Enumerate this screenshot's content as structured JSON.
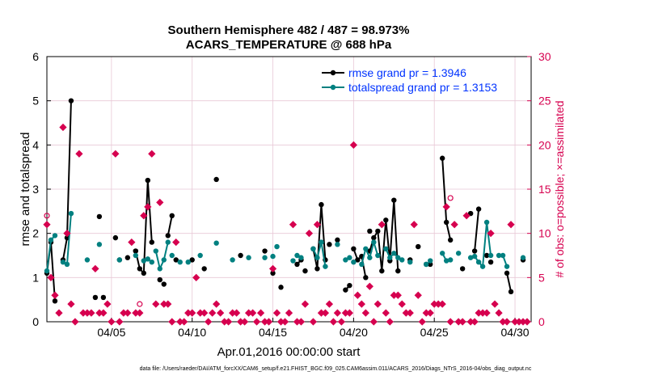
{
  "chart_data": {
    "type": "line",
    "title_line1": "Southern Hemisphere 482 / 487 = 98.973%",
    "title_line2": "ACARS_TEMPERATURE @ 688 hPa",
    "xlabel": "Apr.01,2016 00:00:00 start",
    "ylabel_left": "rmse and totalspread",
    "ylabel_right": "# of obs: o=possible; ×=assimilated",
    "footer": "data file: /Users/raeder/DAI/ATM_forcXX/CAM6_setup/f.e21.FHIST_BGC.f09_025.CAM6assim.011/ACARS_2016/Diags_NTrS_2016-04/obs_diag_output.nc",
    "xlim": [
      1,
      31
    ],
    "ylim_left": [
      0,
      6
    ],
    "ylim_right": [
      0,
      30
    ],
    "xticks": [
      5,
      10,
      15,
      20,
      25,
      30
    ],
    "xtick_labels": [
      "04/05",
      "04/10",
      "04/15",
      "04/20",
      "04/25",
      "04/30"
    ],
    "yticks_left": [
      "0",
      "1",
      "2",
      "3",
      "4",
      "5",
      "6"
    ],
    "yticks_right": [
      "0",
      "5",
      "10",
      "15",
      "20",
      "25",
      "30"
    ],
    "colors": {
      "rmse": "#000000",
      "spread": "#008080",
      "obs": "#d6004f",
      "grid": "#e8c8d6"
    },
    "legend": [
      {
        "name": "rmse grand pr = 1.3946",
        "color": "#0033ff"
      },
      {
        "name": "totalspread grand pr = 1.3153",
        "color": "#0033ff"
      }
    ],
    "rmse_segments": [
      [
        [
          1.0,
          1.1
        ],
        [
          1.25,
          1.8
        ],
        [
          1.5,
          0.47
        ]
      ],
      [
        [
          2.0,
          1.4
        ],
        [
          2.25,
          1.9
        ],
        [
          2.5,
          5.0
        ]
      ],
      [
        [
          4.25,
          2.38
        ]
      ],
      [
        [
          6.5,
          1.6
        ],
        [
          6.75,
          1.2
        ],
        [
          7.0,
          1.1
        ],
        [
          7.25,
          3.2
        ],
        [
          7.5,
          1.8
        ]
      ],
      [
        [
          8.5,
          1.95
        ],
        [
          8.75,
          2.4
        ]
      ],
      [
        [
          11.5,
          3.22
        ]
      ],
      [
        [
          15.5,
          0.78
        ]
      ],
      [
        [
          16.5,
          1.3
        ],
        [
          16.75,
          1.4
        ]
      ],
      [
        [
          17.5,
          1.65
        ],
        [
          17.75,
          1.2
        ],
        [
          18.0,
          2.65
        ],
        [
          18.25,
          1.4
        ]
      ],
      [
        [
          19.5,
          0.72
        ],
        [
          19.75,
          0.82
        ]
      ],
      [
        [
          20.0,
          1.65
        ],
        [
          20.25,
          1.4
        ],
        [
          20.5,
          1.48
        ],
        [
          20.75,
          1.0
        ]
      ],
      [
        [
          21.0,
          1.6
        ],
        [
          21.25,
          1.9
        ],
        [
          21.5,
          2.05
        ],
        [
          21.75,
          1.15
        ],
        [
          22.0,
          2.3
        ],
        [
          22.25,
          1.38
        ],
        [
          22.5,
          2.75
        ],
        [
          22.75,
          1.15
        ]
      ],
      [
        [
          25.5,
          3.7
        ],
        [
          25.75,
          2.25
        ],
        [
          26.0,
          1.85
        ]
      ],
      [
        [
          27.5,
          1.6
        ],
        [
          27.75,
          2.55
        ]
      ],
      [
        [
          29.5,
          1.1
        ],
        [
          29.75,
          0.68
        ]
      ]
    ],
    "rmse_isolated": [
      [
        4.0,
        0.55
      ],
      [
        4.5,
        0.55
      ],
      [
        5.25,
        1.9
      ],
      [
        5.5,
        1.4
      ],
      [
        6.0,
        1.45
      ],
      [
        6.5,
        1.6
      ],
      [
        8.0,
        0.95
      ],
      [
        8.25,
        0.85
      ],
      [
        9.0,
        1.4
      ],
      [
        10.0,
        1.4
      ],
      [
        10.75,
        1.2
      ],
      [
        13.0,
        1.5
      ],
      [
        14.5,
        1.6
      ],
      [
        15.0,
        1.1
      ],
      [
        17.0,
        1.15
      ],
      [
        18.5,
        1.75
      ],
      [
        19.0,
        1.85
      ],
      [
        21.0,
        2.05
      ],
      [
        23.5,
        1.4
      ],
      [
        24.0,
        1.7
      ],
      [
        24.5,
        1.3
      ],
      [
        24.75,
        1.3
      ],
      [
        26.75,
        1.2
      ],
      [
        27.25,
        2.45
      ],
      [
        28.25,
        1.5
      ],
      [
        28.5,
        1.35
      ],
      [
        30.5,
        1.4
      ]
    ],
    "spread_segments": [
      [
        [
          1.0,
          1.15
        ],
        [
          1.25,
          1.85
        ],
        [
          1.5,
          1.95
        ]
      ],
      [
        [
          2.0,
          1.35
        ],
        [
          2.25,
          1.3
        ],
        [
          2.5,
          2.45
        ]
      ],
      [
        [
          7.0,
          1.38
        ],
        [
          7.25,
          1.42
        ],
        [
          7.5,
          1.35
        ]
      ],
      [
        [
          7.75,
          1.6
        ],
        [
          8.0,
          1.2
        ],
        [
          8.25,
          1.4
        ],
        [
          8.5,
          1.8
        ]
      ],
      [
        [
          17.5,
          1.65
        ],
        [
          17.75,
          1.45
        ],
        [
          18.0,
          1.8
        ],
        [
          18.25,
          1.25
        ]
      ],
      [
        [
          20.5,
          1.3
        ],
        [
          20.75,
          1.65
        ],
        [
          21.0,
          1.45
        ],
        [
          21.25,
          1.8
        ],
        [
          21.5,
          1.5
        ]
      ],
      [
        [
          22.0,
          1.65
        ],
        [
          22.25,
          1.45
        ],
        [
          22.5,
          1.55
        ],
        [
          22.75,
          1.45
        ]
      ],
      [
        [
          25.5,
          1.55
        ],
        [
          25.75,
          1.38
        ],
        [
          26.0,
          1.4
        ]
      ],
      [
        [
          27.5,
          1.48
        ],
        [
          27.75,
          1.35
        ],
        [
          28.0,
          1.25
        ],
        [
          28.25,
          2.25
        ],
        [
          28.5,
          1.5
        ]
      ],
      [
        [
          29.0,
          1.5
        ],
        [
          29.25,
          1.5
        ],
        [
          29.5,
          1.25
        ]
      ]
    ],
    "spread_isolated": [
      [
        3.5,
        1.4
      ],
      [
        4.25,
        1.75
      ],
      [
        5.5,
        1.4
      ],
      [
        6.5,
        1.5
      ],
      [
        8.75,
        1.5
      ],
      [
        9.25,
        1.35
      ],
      [
        9.75,
        1.35
      ],
      [
        10.5,
        1.5
      ],
      [
        11.5,
        1.78
      ],
      [
        12.5,
        1.4
      ],
      [
        13.5,
        1.45
      ],
      [
        14.5,
        1.45
      ],
      [
        15.0,
        1.48
      ],
      [
        15.25,
        1.7
      ],
      [
        16.25,
        1.38
      ],
      [
        16.5,
        1.5
      ],
      [
        16.75,
        1.45
      ],
      [
        19.0,
        1.75
      ],
      [
        19.5,
        1.4
      ],
      [
        19.75,
        1.45
      ],
      [
        20.0,
        1.35
      ],
      [
        23.0,
        1.4
      ],
      [
        23.5,
        1.35
      ],
      [
        24.5,
        1.3
      ],
      [
        24.75,
        1.38
      ],
      [
        26.5,
        1.55
      ],
      [
        27.25,
        1.45
      ],
      [
        30.5,
        1.45
      ]
    ],
    "obs_possible": [
      [
        1.0,
        12.0
      ],
      [
        6.75,
        2.0
      ],
      [
        26.0,
        14.0
      ]
    ],
    "obs_assimilated": [
      [
        1.0,
        11.0
      ],
      [
        1.25,
        5.0
      ],
      [
        1.5,
        3.0
      ],
      [
        1.75,
        1.0
      ],
      [
        2.0,
        22.0
      ],
      [
        2.25,
        10.0
      ],
      [
        2.5,
        2.0
      ],
      [
        2.75,
        0.0
      ],
      [
        3.0,
        19.0
      ],
      [
        3.25,
        1.0
      ],
      [
        3.5,
        1.0
      ],
      [
        3.75,
        1.0
      ],
      [
        4.0,
        6.0
      ],
      [
        4.25,
        1.0
      ],
      [
        4.5,
        1.0
      ],
      [
        4.75,
        2.0
      ],
      [
        5.0,
        0.0
      ],
      [
        5.25,
        19.0
      ],
      [
        5.5,
        0.0
      ],
      [
        5.75,
        1.0
      ],
      [
        6.0,
        1.0
      ],
      [
        6.25,
        9.0
      ],
      [
        6.5,
        1.0
      ],
      [
        6.75,
        1.0
      ],
      [
        7.0,
        12.0
      ],
      [
        7.25,
        13.0
      ],
      [
        7.5,
        19.0
      ],
      [
        7.75,
        2.0
      ],
      [
        8.0,
        13.5
      ],
      [
        8.25,
        2.0
      ],
      [
        8.5,
        2.0
      ],
      [
        8.75,
        0.0
      ],
      [
        9.0,
        9.0
      ],
      [
        9.25,
        0.0
      ],
      [
        9.5,
        0.0
      ],
      [
        9.75,
        1.0
      ],
      [
        10.0,
        1.0
      ],
      [
        10.25,
        5.0
      ],
      [
        10.5,
        1.0
      ],
      [
        10.75,
        1.0
      ],
      [
        11.0,
        0.0
      ],
      [
        11.25,
        1.0
      ],
      [
        11.5,
        2.0
      ],
      [
        11.75,
        1.0
      ],
      [
        12.0,
        0.0
      ],
      [
        12.25,
        0.0
      ],
      [
        12.5,
        1.0
      ],
      [
        12.75,
        1.0
      ],
      [
        13.0,
        0.0
      ],
      [
        13.25,
        0.0
      ],
      [
        13.5,
        1.0
      ],
      [
        13.75,
        1.0
      ],
      [
        14.0,
        0.0
      ],
      [
        14.25,
        1.0
      ],
      [
        14.5,
        0.0
      ],
      [
        14.75,
        0.0
      ],
      [
        15.0,
        6.0
      ],
      [
        15.25,
        1.0
      ],
      [
        15.5,
        0.0
      ],
      [
        15.75,
        0.0
      ],
      [
        16.0,
        1.0
      ],
      [
        16.25,
        11.0
      ],
      [
        16.5,
        0.0
      ],
      [
        16.75,
        0.0
      ],
      [
        17.0,
        2.0
      ],
      [
        17.25,
        10.0
      ],
      [
        17.5,
        0.0
      ],
      [
        17.75,
        11.0
      ],
      [
        18.0,
        1.0
      ],
      [
        18.25,
        1.0
      ],
      [
        18.5,
        2.0
      ],
      [
        18.75,
        0.0
      ],
      [
        19.0,
        1.0
      ],
      [
        19.25,
        0.0
      ],
      [
        19.5,
        1.0
      ],
      [
        19.75,
        1.0
      ],
      [
        20.0,
        20.0
      ],
      [
        20.25,
        3.0
      ],
      [
        20.5,
        2.0
      ],
      [
        20.75,
        1.0
      ],
      [
        21.0,
        4.0
      ],
      [
        21.25,
        0.0
      ],
      [
        21.5,
        2.0
      ],
      [
        21.75,
        11.0
      ],
      [
        22.0,
        1.0
      ],
      [
        22.25,
        0.0
      ],
      [
        22.5,
        3.0
      ],
      [
        22.75,
        3.0
      ],
      [
        23.0,
        2.0
      ],
      [
        23.25,
        1.0
      ],
      [
        23.5,
        1.0
      ],
      [
        23.75,
        11.0
      ],
      [
        24.0,
        3.0
      ],
      [
        24.25,
        0.0
      ],
      [
        24.5,
        1.0
      ],
      [
        24.75,
        1.0
      ],
      [
        25.0,
        2.0
      ],
      [
        25.25,
        2.0
      ],
      [
        25.5,
        2.0
      ],
      [
        25.75,
        13.0
      ],
      [
        26.0,
        0.0
      ],
      [
        26.25,
        11.0
      ],
      [
        26.5,
        0.0
      ],
      [
        26.75,
        0.0
      ],
      [
        27.0,
        12.0
      ],
      [
        27.25,
        0.0
      ],
      [
        27.5,
        0.0
      ],
      [
        27.75,
        1.0
      ],
      [
        28.0,
        1.0
      ],
      [
        28.25,
        1.0
      ],
      [
        28.5,
        10.0
      ],
      [
        28.75,
        2.0
      ],
      [
        29.0,
        1.0
      ],
      [
        29.25,
        0.0
      ],
      [
        29.5,
        0.0
      ],
      [
        29.75,
        11.0
      ],
      [
        30.0,
        0.0
      ],
      [
        30.25,
        0.0
      ],
      [
        30.5,
        0.0
      ],
      [
        30.75,
        0.0
      ]
    ]
  }
}
